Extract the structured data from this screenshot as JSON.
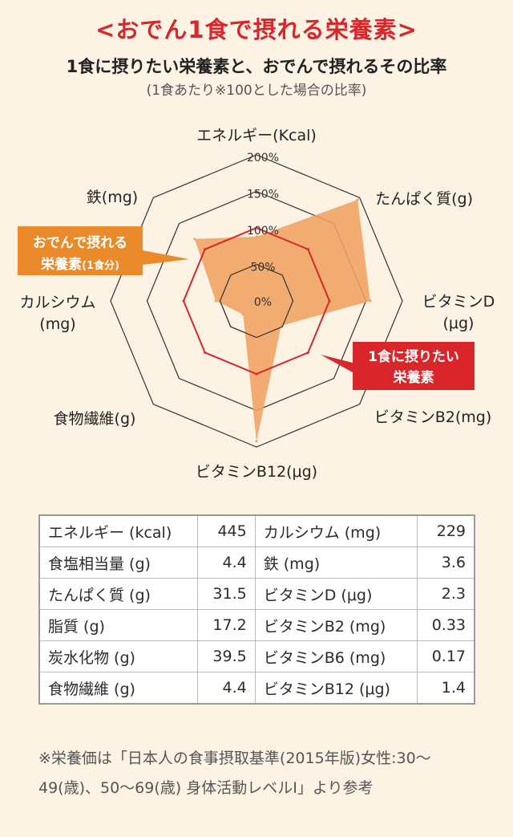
{
  "header": {
    "title": "<おでん1食で摂れる栄養素>",
    "subtitle": "1食に摂りたい栄養素と、おでんで摂れるその比率",
    "note": "(1食あたり※100とした場合の比率)"
  },
  "chart_data": {
    "type": "radar",
    "axes": [
      "エネルギー(Kcal)",
      "たんぱく質(g)",
      "ビタミンD(μg)",
      "ビタミンB2(mg)",
      "ビタミンB12(μg)",
      "食物繊維(g)",
      "カルシウム(mg)",
      "鉄(mg)"
    ],
    "ticks": [
      "0%",
      "50%",
      "100%",
      "150%",
      "200%"
    ],
    "rlim": [
      0,
      200
    ],
    "series": [
      {
        "name": "おでんで摂れる栄養素(1食分)",
        "color": "#f0a060",
        "values": [
          88,
          196,
          156,
          48,
          192,
          26,
          56,
          120
        ]
      },
      {
        "name": "1食に摂りたい栄養素",
        "color": "#d9262b",
        "values": [
          100,
          100,
          100,
          100,
          100,
          100,
          100,
          100
        ]
      }
    ],
    "callouts": {
      "oden_line1": "おでんで摂れる",
      "oden_line2": "栄養素",
      "oden_line2_small": "(1食分)",
      "target_line1": "1食に摂りたい",
      "target_line2": "栄養素"
    },
    "callout_colors": {
      "oden": "#ea8a2b",
      "target": "#d9262b"
    }
  },
  "table": {
    "rows": [
      [
        "エネルギー (kcal)",
        "445",
        "カルシウム (mg)",
        "229"
      ],
      [
        "食塩相当量 (g)",
        "4.4",
        "鉄 (mg)",
        "3.6"
      ],
      [
        "たんぱく質 (g)",
        "31.5",
        "ビタミンD (μg)",
        "2.3"
      ],
      [
        "脂質 (g)",
        "17.2",
        "ビタミンB2 (mg)",
        "0.33"
      ],
      [
        "炭水化物 (g)",
        "39.5",
        "ビタミンB6 (mg)",
        "0.17"
      ],
      [
        "食物繊維 (g)",
        "4.4",
        "ビタミンB12 (μg)",
        "1.4"
      ]
    ]
  },
  "footnote": "※栄養価は「日本人の食事摂取基準(2015年版)女性:30〜49(歳)、50〜69(歳) 身体活動レベルⅠ」より参考"
}
